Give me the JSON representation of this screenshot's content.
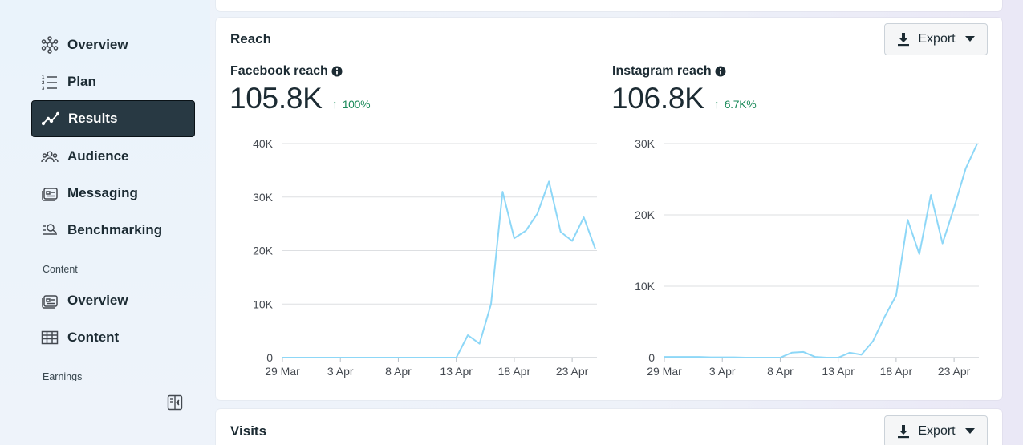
{
  "sidebar": {
    "items": [
      {
        "label": "Overview",
        "icon": "network-icon",
        "active": false
      },
      {
        "label": "Plan",
        "icon": "numbered-list-icon",
        "active": false
      },
      {
        "label": "Results",
        "icon": "trend-line-icon",
        "active": true
      },
      {
        "label": "Audience",
        "icon": "people-icon",
        "active": false
      },
      {
        "label": "Messaging",
        "icon": "message-card-icon",
        "active": false
      },
      {
        "label": "Benchmarking",
        "icon": "search-list-icon",
        "active": false
      }
    ],
    "content_section": "Content",
    "content_items": [
      {
        "label": "Overview",
        "icon": "message-card-icon"
      },
      {
        "label": "Content",
        "icon": "table-icon"
      }
    ],
    "earnings_section": "Earnings"
  },
  "reach": {
    "title": "Reach",
    "export_label": "Export",
    "facebook": {
      "label": "Facebook reach",
      "value": "105.8K",
      "delta": "100%"
    },
    "instagram": {
      "label": "Instagram reach",
      "value": "106.8K",
      "delta": "6.7K%"
    }
  },
  "visits": {
    "title": "Visits",
    "export_label": "Export"
  },
  "colors": {
    "line": "#8dd7f7",
    "delta": "#1b8a5a",
    "active_nav": "#283943"
  },
  "chart_data": [
    {
      "type": "line",
      "title": "Facebook reach",
      "x_ticks": [
        "29 Mar",
        "3 Apr",
        "8 Apr",
        "13 Apr",
        "18 Apr",
        "23 Apr"
      ],
      "y_ticks": [
        "0",
        "10K",
        "20K",
        "30K",
        "40K"
      ],
      "ylim": [
        0,
        40000
      ],
      "x_day_range": [
        0,
        27
      ],
      "grid": true,
      "series": [
        {
          "values": [
            0,
            0,
            0,
            0,
            0,
            0,
            0,
            0,
            0,
            0,
            0,
            0,
            0,
            0,
            0,
            0,
            4200,
            2600,
            10000,
            31000,
            22300,
            23700,
            26900,
            32900,
            23500,
            21800,
            26200,
            20300
          ]
        }
      ]
    },
    {
      "type": "line",
      "title": "Instagram reach",
      "x_ticks": [
        "29 Mar",
        "3 Apr",
        "8 Apr",
        "13 Apr",
        "18 Apr",
        "23 Apr"
      ],
      "y_ticks": [
        "0",
        "10K",
        "20K",
        "30K"
      ],
      "ylim": [
        0,
        30000
      ],
      "x_day_range": [
        0,
        27
      ],
      "grid": true,
      "series": [
        {
          "values": [
            100,
            100,
            100,
            100,
            50,
            50,
            50,
            0,
            0,
            0,
            0,
            700,
            800,
            100,
            0,
            0,
            700,
            400,
            2300,
            5700,
            8700,
            19300,
            14500,
            22800,
            16000,
            21000,
            26500,
            30000
          ]
        }
      ]
    }
  ]
}
